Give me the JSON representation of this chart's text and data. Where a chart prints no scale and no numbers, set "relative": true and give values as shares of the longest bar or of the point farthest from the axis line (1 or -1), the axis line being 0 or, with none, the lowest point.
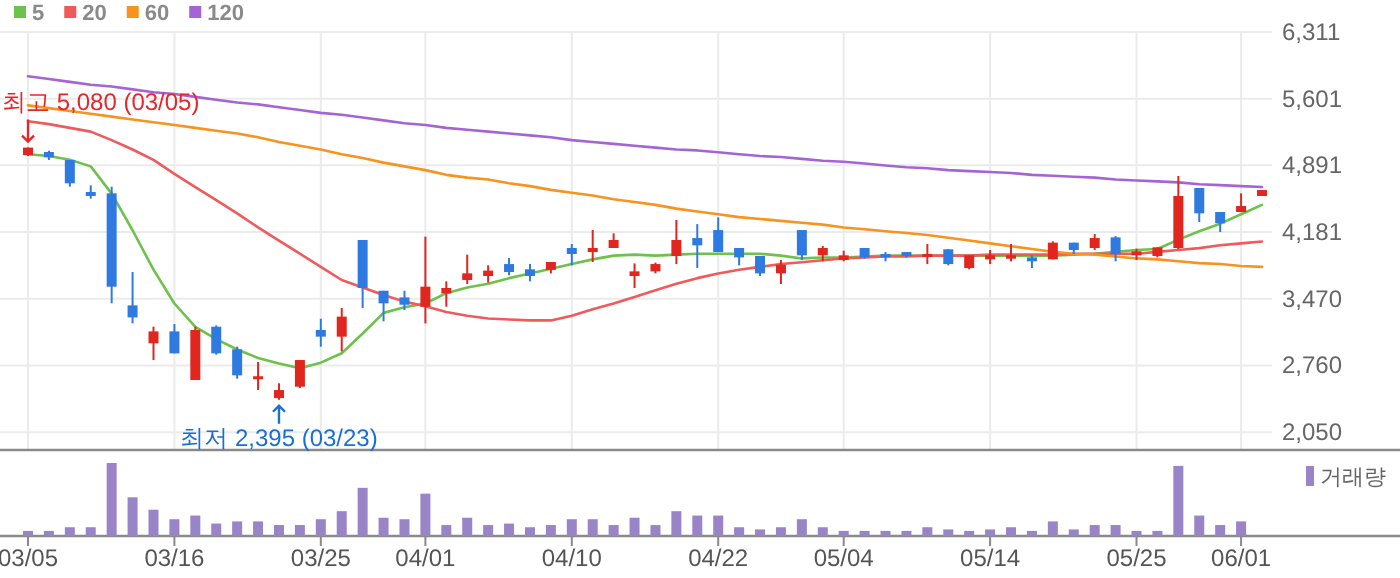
{
  "chart_data": [
    {
      "type": "candlestick",
      "categories": [
        "03/05",
        null,
        null,
        null,
        null,
        null,
        null,
        "03/16",
        null,
        null,
        null,
        null,
        null,
        null,
        "03/25",
        null,
        null,
        null,
        null,
        "04/01",
        null,
        null,
        null,
        null,
        null,
        null,
        "04/10",
        null,
        null,
        null,
        null,
        null,
        null,
        "04/22",
        null,
        null,
        null,
        null,
        null,
        "05/04",
        null,
        null,
        null,
        null,
        null,
        null,
        "05/14",
        null,
        null,
        null,
        null,
        null,
        null,
        "05/25",
        null,
        null,
        null,
        null,
        "06/01",
        null
      ],
      "ohlc": [
        [
          5000,
          5080,
          4990,
          5080
        ],
        [
          5033,
          5047,
          4948,
          4976
        ],
        [
          4948,
          4948,
          4664,
          4700
        ],
        [
          4607,
          4678,
          4536,
          4565
        ],
        [
          4593,
          4664,
          3422,
          3599
        ],
        [
          3400,
          3755,
          3209,
          3272
        ],
        [
          2996,
          3173,
          2818,
          3123
        ],
        [
          3123,
          3201,
          2889,
          2889
        ],
        [
          2605,
          3173,
          2605,
          3138
        ],
        [
          3173,
          3187,
          2875,
          2889
        ],
        [
          2932,
          2960,
          2619,
          2655
        ],
        [
          2635,
          2797,
          2499,
          2645
        ],
        [
          2413,
          2570,
          2395,
          2498
        ],
        [
          2534,
          2818,
          2520,
          2818
        ],
        [
          3138,
          3258,
          2960,
          3067
        ],
        [
          3067,
          3372,
          2910,
          3280
        ],
        [
          4096,
          4096,
          3372,
          3585
        ],
        [
          3556,
          3556,
          3230,
          3422
        ],
        [
          3485,
          3556,
          3350,
          3407
        ],
        [
          3386,
          4132,
          3208,
          3599
        ],
        [
          3528,
          3656,
          3386,
          3585
        ],
        [
          3670,
          3940,
          3627,
          3741
        ],
        [
          3713,
          3826,
          3642,
          3770
        ],
        [
          3840,
          3904,
          3720,
          3755
        ],
        [
          3784,
          3840,
          3656,
          3713
        ],
        [
          3777,
          3862,
          3741,
          3862
        ],
        [
          4011,
          4053,
          3826,
          3947
        ],
        [
          3968,
          4202,
          3862,
          4011
        ],
        [
          4011,
          4167,
          4011,
          4096
        ],
        [
          3713,
          3847,
          3585,
          3762
        ],
        [
          3762,
          3855,
          3741,
          3840
        ],
        [
          3926,
          4309,
          3840,
          4096
        ],
        [
          4117,
          4266,
          3798,
          4039
        ],
        [
          4202,
          4337,
          3968,
          3968
        ],
        [
          4011,
          4011,
          3826,
          3911
        ],
        [
          3926,
          3926,
          3713,
          3741
        ],
        [
          3741,
          3883,
          3628,
          3833
        ],
        [
          4202,
          4202,
          3883,
          3933
        ],
        [
          3933,
          4032,
          3869,
          4011
        ],
        [
          3883,
          3982,
          3869,
          3933
        ],
        [
          4011,
          4011,
          3897,
          3911
        ],
        [
          3947,
          3968,
          3869,
          3911
        ],
        [
          3968,
          3968,
          3911,
          3926
        ],
        [
          3926,
          4053,
          3840,
          3947
        ],
        [
          3997,
          3997,
          3826,
          3840
        ],
        [
          3798,
          3933,
          3784,
          3933
        ],
        [
          3890,
          3990,
          3840,
          3933
        ],
        [
          3897,
          4053,
          3869,
          3933
        ],
        [
          3911,
          3933,
          3798,
          3869
        ],
        [
          3890,
          4082,
          3890,
          4068
        ],
        [
          4068,
          4068,
          3947,
          3990
        ],
        [
          4011,
          4160,
          3990,
          4117
        ],
        [
          4124,
          4138,
          3869,
          3947
        ],
        [
          3933,
          4004,
          3883,
          3976
        ],
        [
          3926,
          4018,
          3911,
          4018
        ],
        [
          4011,
          4778,
          3997,
          4565
        ],
        [
          4650,
          4650,
          4288,
          4380
        ],
        [
          4394,
          4394,
          4181,
          4274
        ],
        [
          4394,
          4593,
          4394,
          4458
        ],
        [
          4565,
          4628,
          4565,
          4628
        ]
      ],
      "series": [
        {
          "type": "line",
          "name": "5",
          "color": "#6cc24a",
          "values": [
            5010,
            4990,
            4950,
            4880,
            4590,
            4200,
            3780,
            3420,
            3170,
            3040,
            2930,
            2840,
            2780,
            2730,
            2790,
            2890,
            3100,
            3320,
            3380,
            3420,
            3530,
            3590,
            3630,
            3690,
            3740,
            3790,
            3840,
            3890,
            3930,
            3940,
            3930,
            3940,
            3950,
            3950,
            3950,
            3950,
            3930,
            3900,
            3910,
            3910,
            3920,
            3930,
            3930,
            3930,
            3930,
            3930,
            3930,
            3930,
            3930,
            3930,
            3940,
            3950,
            3970,
            3990,
            4000,
            4100,
            4190,
            4270,
            4370,
            4470
          ]
        },
        {
          "type": "line",
          "name": "20",
          "color": "#f05a5a",
          "values": [
            5360,
            5330,
            5290,
            5250,
            5160,
            5060,
            4950,
            4800,
            4660,
            4520,
            4380,
            4230,
            4090,
            3950,
            3810,
            3670,
            3590,
            3510,
            3440,
            3390,
            3330,
            3290,
            3260,
            3250,
            3240,
            3240,
            3290,
            3360,
            3420,
            3490,
            3560,
            3630,
            3690,
            3740,
            3780,
            3810,
            3840,
            3860,
            3880,
            3900,
            3910,
            3920,
            3920,
            3930,
            3930,
            3930,
            3940,
            3940,
            3940,
            3940,
            3950,
            3950,
            3950,
            3950,
            3970,
            3990,
            4010,
            4040,
            4060,
            4080
          ]
        },
        {
          "type": "line",
          "name": "60",
          "color": "#f7931e",
          "values": [
            5530,
            5500,
            5470,
            5440,
            5410,
            5380,
            5350,
            5320,
            5290,
            5260,
            5230,
            5190,
            5140,
            5100,
            5060,
            5010,
            4970,
            4920,
            4880,
            4840,
            4790,
            4760,
            4740,
            4700,
            4670,
            4630,
            4600,
            4570,
            4530,
            4500,
            4470,
            4430,
            4400,
            4370,
            4340,
            4320,
            4300,
            4280,
            4260,
            4230,
            4210,
            4190,
            4170,
            4150,
            4120,
            4090,
            4060,
            4030,
            4000,
            3970,
            3950,
            3940,
            3920,
            3900,
            3890,
            3870,
            3850,
            3840,
            3820,
            3810
          ]
        },
        {
          "type": "line",
          "name": "120",
          "color": "#a464d6",
          "values": [
            5840,
            5810,
            5780,
            5750,
            5730,
            5700,
            5670,
            5650,
            5620,
            5590,
            5560,
            5540,
            5510,
            5480,
            5450,
            5430,
            5400,
            5370,
            5340,
            5320,
            5290,
            5270,
            5250,
            5230,
            5210,
            5190,
            5160,
            5140,
            5120,
            5100,
            5080,
            5060,
            5050,
            5030,
            5010,
            4990,
            4980,
            4960,
            4940,
            4930,
            4910,
            4890,
            4870,
            4860,
            4840,
            4830,
            4820,
            4810,
            4790,
            4780,
            4770,
            4760,
            4740,
            4730,
            4720,
            4710,
            4690,
            4680,
            4670,
            4660
          ]
        }
      ],
      "ylim": [
        1860,
        6311
      ],
      "yticks": [
        {
          "value": 2050,
          "label": "2,050"
        },
        {
          "value": 2760,
          "label": "2,760"
        },
        {
          "value": 3470,
          "label": "3,470"
        },
        {
          "value": 4181,
          "label": "4,181"
        },
        {
          "value": 4891,
          "label": "4,891"
        },
        {
          "value": 5601,
          "label": "5,601"
        },
        {
          "value": 6311,
          "label": "6,311"
        }
      ],
      "grid": true,
      "legend": "top left",
      "tick_labels": "y",
      "annotations": [
        {
          "text": "최고 5,080 (03/05)",
          "x": "03/05",
          "y": 5080
        },
        {
          "text": "최저 2,395 (03/23)",
          "y": 2395
        }
      ]
    },
    {
      "type": "bar",
      "categories": [
        "03/05",
        null,
        null,
        null,
        null,
        null,
        null,
        "03/16",
        null,
        null,
        null,
        null,
        null,
        null,
        "03/25",
        null,
        null,
        null,
        null,
        "04/01",
        null,
        null,
        null,
        null,
        null,
        null,
        "04/10",
        null,
        null,
        null,
        null,
        null,
        null,
        "04/22",
        null,
        null,
        null,
        null,
        null,
        "05/04",
        null,
        null,
        null,
        null,
        null,
        null,
        "05/14",
        null,
        null,
        null,
        null,
        null,
        null,
        "05/25",
        null,
        null,
        null,
        null,
        "06/01",
        null
      ],
      "relative": true,
      "series": [
        {
          "name": "거래량",
          "color": "#9a84c8",
          "values": [
            0.07,
            0.07,
            0.12,
            0.12,
            1,
            0.53,
            0.36,
            0.23,
            0.28,
            0.17,
            0.2,
            0.2,
            0.15,
            0.15,
            0.23,
            0.34,
            0.66,
            0.25,
            0.23,
            0.58,
            0.15,
            0.25,
            0.15,
            0.17,
            0.12,
            0.15,
            0.23,
            0.23,
            0.15,
            0.25,
            0.15,
            0.34,
            0.28,
            0.28,
            0.12,
            0.09,
            0.12,
            0.23,
            0.12,
            0.07,
            0.07,
            0.07,
            0.07,
            0.12,
            0.09,
            0.07,
            0.09,
            0.12,
            0.07,
            0.2,
            0.09,
            0.15,
            0.15,
            0.07,
            0.07,
            0.96,
            0.28,
            0.15,
            0.2,
            null
          ]
        }
      ],
      "legend": "top right",
      "tick_labels": "x"
    }
  ]
}
